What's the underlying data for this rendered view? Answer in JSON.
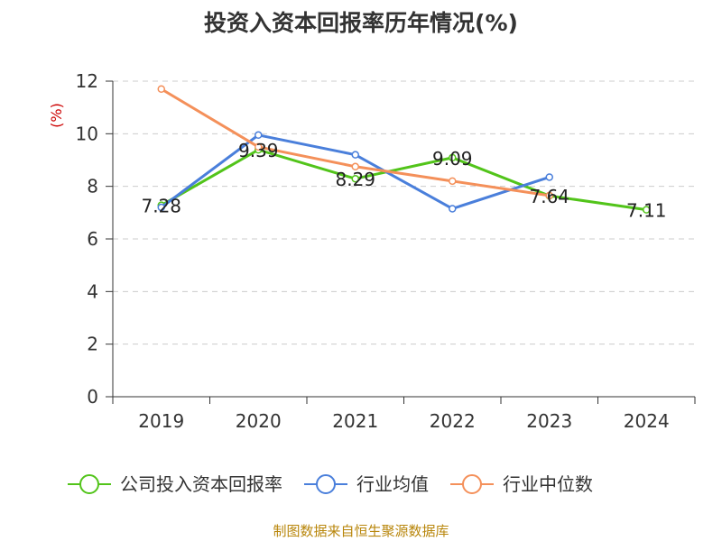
{
  "chart_data": {
    "type": "line",
    "title": "投资入资本回报率历年情况(%)",
    "ylabel": "(%)",
    "categories": [
      "2019",
      "2020",
      "2021",
      "2022",
      "2023",
      "2024"
    ],
    "ylim": [
      0,
      12
    ],
    "yticks": [
      0,
      2,
      4,
      6,
      8,
      10,
      12
    ],
    "grid": true,
    "legend_position": "bottom",
    "series": [
      {
        "name": "公司投入资本回报率",
        "color": "#52c41a",
        "values": [
          7.28,
          9.39,
          8.29,
          9.09,
          7.64,
          7.11
        ],
        "labels": [
          "7.28",
          "9.39",
          "8.29",
          "9.09",
          "7.64",
          "7.11"
        ]
      },
      {
        "name": "行业均值",
        "color": "#4a7fdb",
        "values": [
          7.2,
          9.95,
          9.2,
          7.15,
          8.35,
          null
        ]
      },
      {
        "name": "行业中位数",
        "color": "#f4905a",
        "values": [
          11.7,
          9.5,
          8.75,
          8.2,
          7.65,
          null
        ]
      }
    ]
  },
  "source_text": "制图数据来自恒生聚源数据库"
}
